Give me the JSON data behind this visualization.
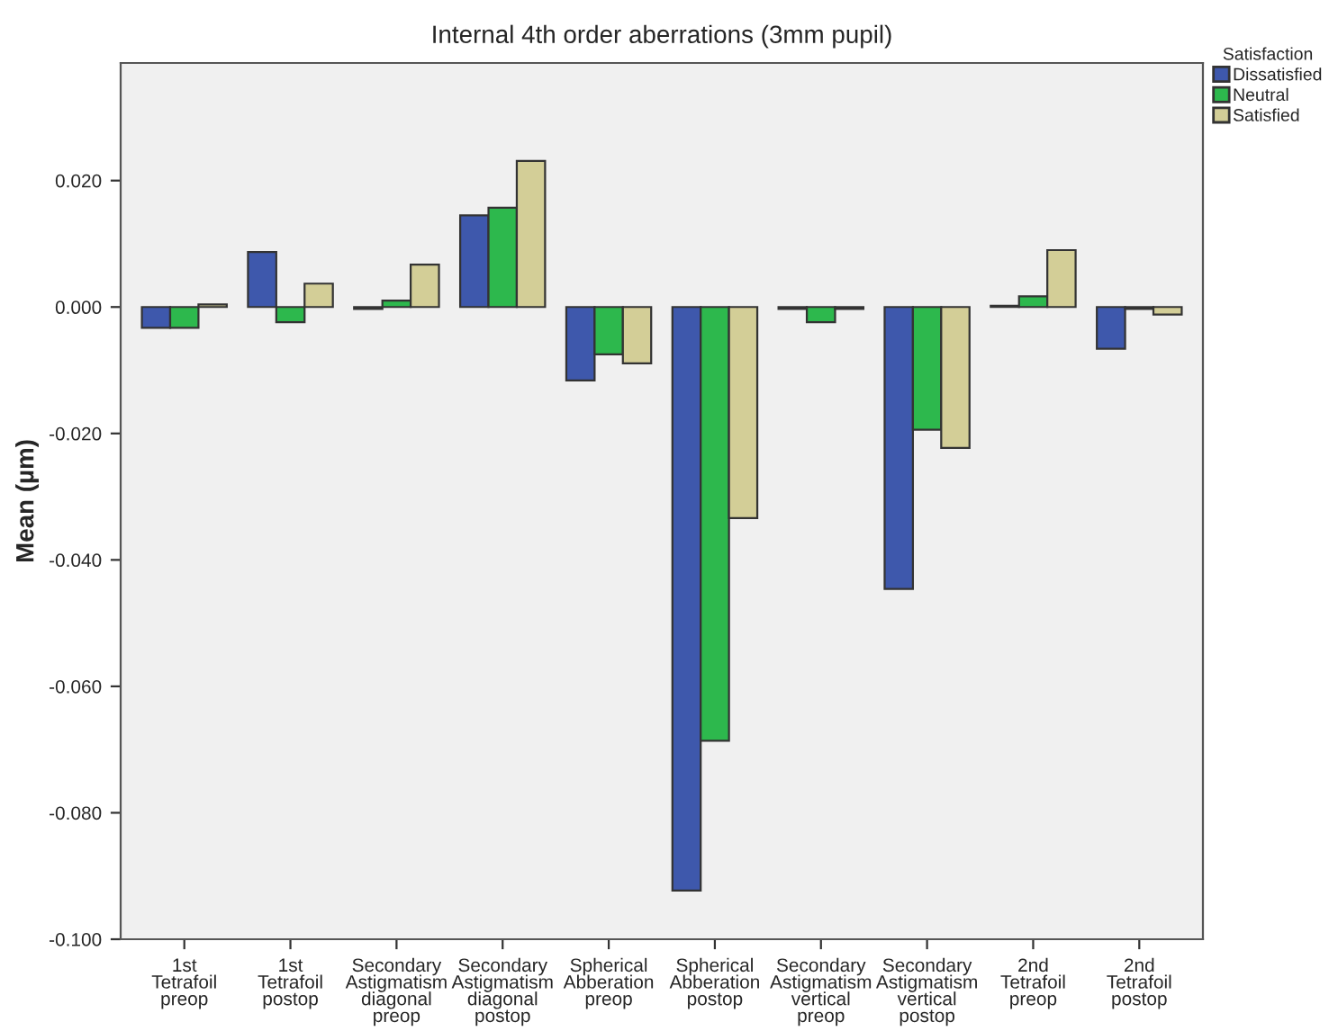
{
  "chart_data": {
    "type": "bar",
    "title": "Internal 4th order aberrations (3mm pupil)",
    "ylabel": "Mean (µm)",
    "legend_title": "Satisfaction",
    "legend": "top right",
    "categories": [
      "1st\nTetrafoil\npreop",
      "1st\nTetrafoil\npostop",
      "Secondary\nAstigmatism\ndiagonal\npreop",
      "Secondary\nAstigmatism\ndiagonal\npostop",
      "Spherical\nAbberation\npreop",
      "Spherical\nAbberation\npostop",
      "Secondary\nAstigmatism\nvertical\npreop",
      "Secondary\nAstigmatism\nvertical\npostop",
      "2nd\nTetrafoil\npreop",
      "2nd\nTetrafoil\npostop"
    ],
    "series": [
      {
        "name": "Dissatisfied",
        "color": "#3e58ac",
        "values": [
          -0.0033,
          0.0087,
          -0.0003,
          0.0145,
          -0.0116,
          -0.0923,
          -0.0003,
          -0.0446,
          0.0002,
          -0.0066
        ]
      },
      {
        "name": "Neutral",
        "color": "#2db84d",
        "values": [
          -0.0033,
          -0.0024,
          0.001,
          0.0157,
          -0.0075,
          -0.0686,
          -0.0024,
          -0.0194,
          0.0017,
          -0.0003
        ]
      },
      {
        "name": "Satisfied",
        "color": "#d3ce97",
        "values": [
          0.0004,
          0.0037,
          0.0067,
          0.0231,
          -0.0089,
          -0.0334,
          -0.0003,
          -0.0223,
          0.009,
          -0.0012
        ]
      }
    ],
    "ylim": [
      -0.1,
      0.0386
    ],
    "yticks": [
      {
        "value": -0.1,
        "label": "-0.100"
      },
      {
        "value": -0.08,
        "label": "-0.080"
      },
      {
        "value": -0.06,
        "label": "-0.060"
      },
      {
        "value": -0.04,
        "label": "-0.040"
      },
      {
        "value": -0.02,
        "label": "-0.020"
      },
      {
        "value": 0.0,
        "label": "0.000"
      },
      {
        "value": 0.02,
        "label": "0.020"
      }
    ],
    "grid": false
  }
}
